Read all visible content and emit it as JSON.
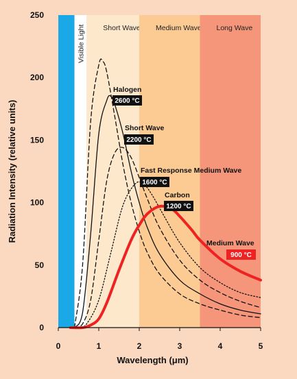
{
  "chart_data": {
    "type": "line",
    "title": "",
    "xlabel": "Wavelength (μm)",
    "ylabel": "Radiation Intensity (relative units)",
    "xlim": [
      0,
      5
    ],
    "ylim": [
      0,
      250
    ],
    "x_ticks": [
      "0",
      "1",
      "2",
      "3",
      "4",
      "5"
    ],
    "y_ticks": [
      "0",
      "50",
      "100",
      "150",
      "200",
      "250"
    ],
    "grid": false,
    "bands": [
      {
        "label": "",
        "x_start": 0,
        "x_end": 0.4,
        "color": "#1aa9e6"
      },
      {
        "label": "Visible Light",
        "x_start": 0.4,
        "x_end": 0.7,
        "color": "#ffffff"
      },
      {
        "label": "Short Wave",
        "x_start": 0.7,
        "x_end": 2.0,
        "color": "#fde8cb"
      },
      {
        "label": "Medium Wave",
        "x_start": 2.0,
        "x_end": 3.5,
        "color": "#fccb94"
      },
      {
        "label": "Long Wave",
        "x_start": 3.5,
        "x_end": 5.0,
        "color": "#f5967a"
      }
    ],
    "series": [
      {
        "name": "Halogen",
        "temperature": "2600 °C",
        "color": "#111111",
        "style": "dashed",
        "x": [
          0.4,
          0.6,
          0.8,
          1.0,
          1.1,
          1.2,
          1.4,
          1.6,
          1.8,
          2.0,
          2.2,
          2.5,
          3.0,
          3.5,
          4.0,
          4.5,
          5.0
        ],
        "y": [
          0,
          50,
          165,
          210,
          213,
          204,
          168,
          130,
          100,
          77,
          60,
          43,
          27,
          19,
          14,
          10,
          8
        ]
      },
      {
        "name": "Short Wave",
        "temperature": "2200 °C",
        "color": "#111111",
        "style": "solid",
        "x": [
          0.4,
          0.6,
          0.8,
          1.0,
          1.2,
          1.3,
          1.4,
          1.6,
          1.8,
          2.0,
          2.2,
          2.5,
          3.0,
          3.5,
          4.0,
          4.5,
          5.0
        ],
        "y": [
          0,
          12,
          75,
          155,
          182,
          185,
          178,
          155,
          125,
          100,
          80,
          59,
          38,
          27,
          19,
          14,
          11
        ]
      },
      {
        "name": "Fast Response Medium Wave",
        "temperature": "1600 °C",
        "color": "#111111",
        "style": "dashed",
        "x": [
          0.4,
          0.6,
          0.8,
          1.0,
          1.2,
          1.4,
          1.6,
          1.8,
          2.0,
          2.2,
          2.5,
          3.0,
          3.5,
          4.0,
          4.5,
          5.0
        ],
        "y": [
          0,
          3,
          22,
          70,
          118,
          140,
          144,
          136,
          120,
          103,
          80,
          54,
          38,
          28,
          21,
          16
        ]
      },
      {
        "name": "Carbon",
        "temperature": "1200 °C",
        "color": "#111111",
        "style": "dotted",
        "x": [
          0.5,
          0.7,
          1.0,
          1.3,
          1.6,
          1.9,
          2.1,
          2.3,
          2.6,
          3.0,
          3.5,
          4.0,
          4.5,
          5.0
        ],
        "y": [
          0,
          3,
          22,
          60,
          98,
          115,
          115,
          107,
          90,
          68,
          48,
          36,
          28,
          24
        ]
      },
      {
        "name": "Medium Wave",
        "temperature": "900 °C",
        "color": "#ee2222",
        "style": "solid",
        "x": [
          0.3,
          0.6,
          0.8,
          1.0,
          1.2,
          1.5,
          1.8,
          2.0,
          2.2,
          2.5,
          2.8,
          3.0,
          3.3,
          3.5,
          4.0,
          4.5,
          5.0
        ],
        "y": [
          0,
          0,
          2,
          7,
          20,
          46,
          70,
          82,
          91,
          97,
          95,
          89,
          78,
          70,
          55,
          45,
          38
        ]
      }
    ]
  }
}
